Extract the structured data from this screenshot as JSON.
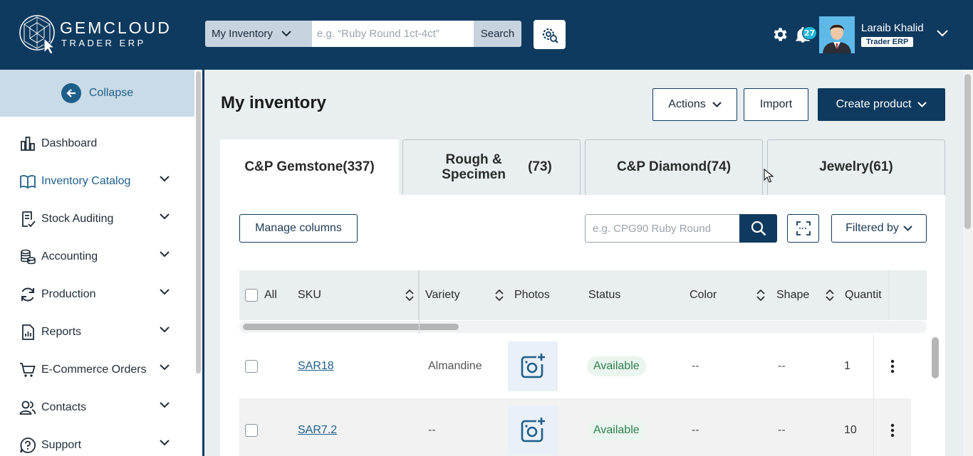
{
  "brand": {
    "name": "GEMCLOUD",
    "subtitle": "TRADER ERP"
  },
  "search": {
    "scope": "My Inventory",
    "placeholder": "e.g. “Ruby Round 1ct-4ct”",
    "button": "Search"
  },
  "header": {
    "notifications_count": "27",
    "user_name": "Laraib Khalid",
    "user_role": "Trader ERP"
  },
  "sidebar": {
    "collapse_label": "Collapse",
    "items": [
      {
        "label": "Dashboard",
        "icon": "dashboard-icon"
      },
      {
        "label": "Inventory Catalog",
        "icon": "book-icon"
      },
      {
        "label": "Stock Auditing",
        "icon": "audit-icon"
      },
      {
        "label": "Accounting",
        "icon": "coins-icon"
      },
      {
        "label": "Production",
        "icon": "sync-icon"
      },
      {
        "label": "Reports",
        "icon": "report-icon"
      },
      {
        "label": "E-Commerce Orders",
        "icon": "cart-icon"
      },
      {
        "label": "Contacts",
        "icon": "contacts-icon"
      },
      {
        "label": "Support",
        "icon": "help-icon"
      }
    ]
  },
  "page": {
    "title": "My inventory",
    "actions_label": "Actions",
    "import_label": "Import",
    "create_label": "Create product"
  },
  "tabs": [
    {
      "label": "C&P Gemstone(337)"
    },
    {
      "label": "Rough & Specimen",
      "count": "(73)"
    },
    {
      "label": "C&P Diamond(74)"
    },
    {
      "label": "Jewelry(61)"
    }
  ],
  "toolbar": {
    "manage_columns": "Manage columns",
    "search_placeholder": "e.g. CPG90 Ruby Round",
    "filter_label": "Filtered by"
  },
  "table": {
    "columns": {
      "all": "All",
      "sku": "SKU",
      "variety": "Variety",
      "photos": "Photos",
      "status": "Status",
      "color": "Color",
      "shape": "Shape",
      "quantity": "Quantit"
    },
    "rows": [
      {
        "sku": "SAR18",
        "variety": "Almandine",
        "status": "Available",
        "color": "--",
        "shape": "--",
        "quantity": "1"
      },
      {
        "sku": "SAR7.2",
        "variety": "--",
        "status": "Available",
        "color": "--",
        "shape": "--",
        "quantity": "10"
      }
    ]
  },
  "colors": {
    "brand_navy": "#0f3a5f",
    "accent_blue": "#1e5f8a",
    "status_green": "#2e7d4f",
    "badge_cyan": "#1fb6d8"
  }
}
